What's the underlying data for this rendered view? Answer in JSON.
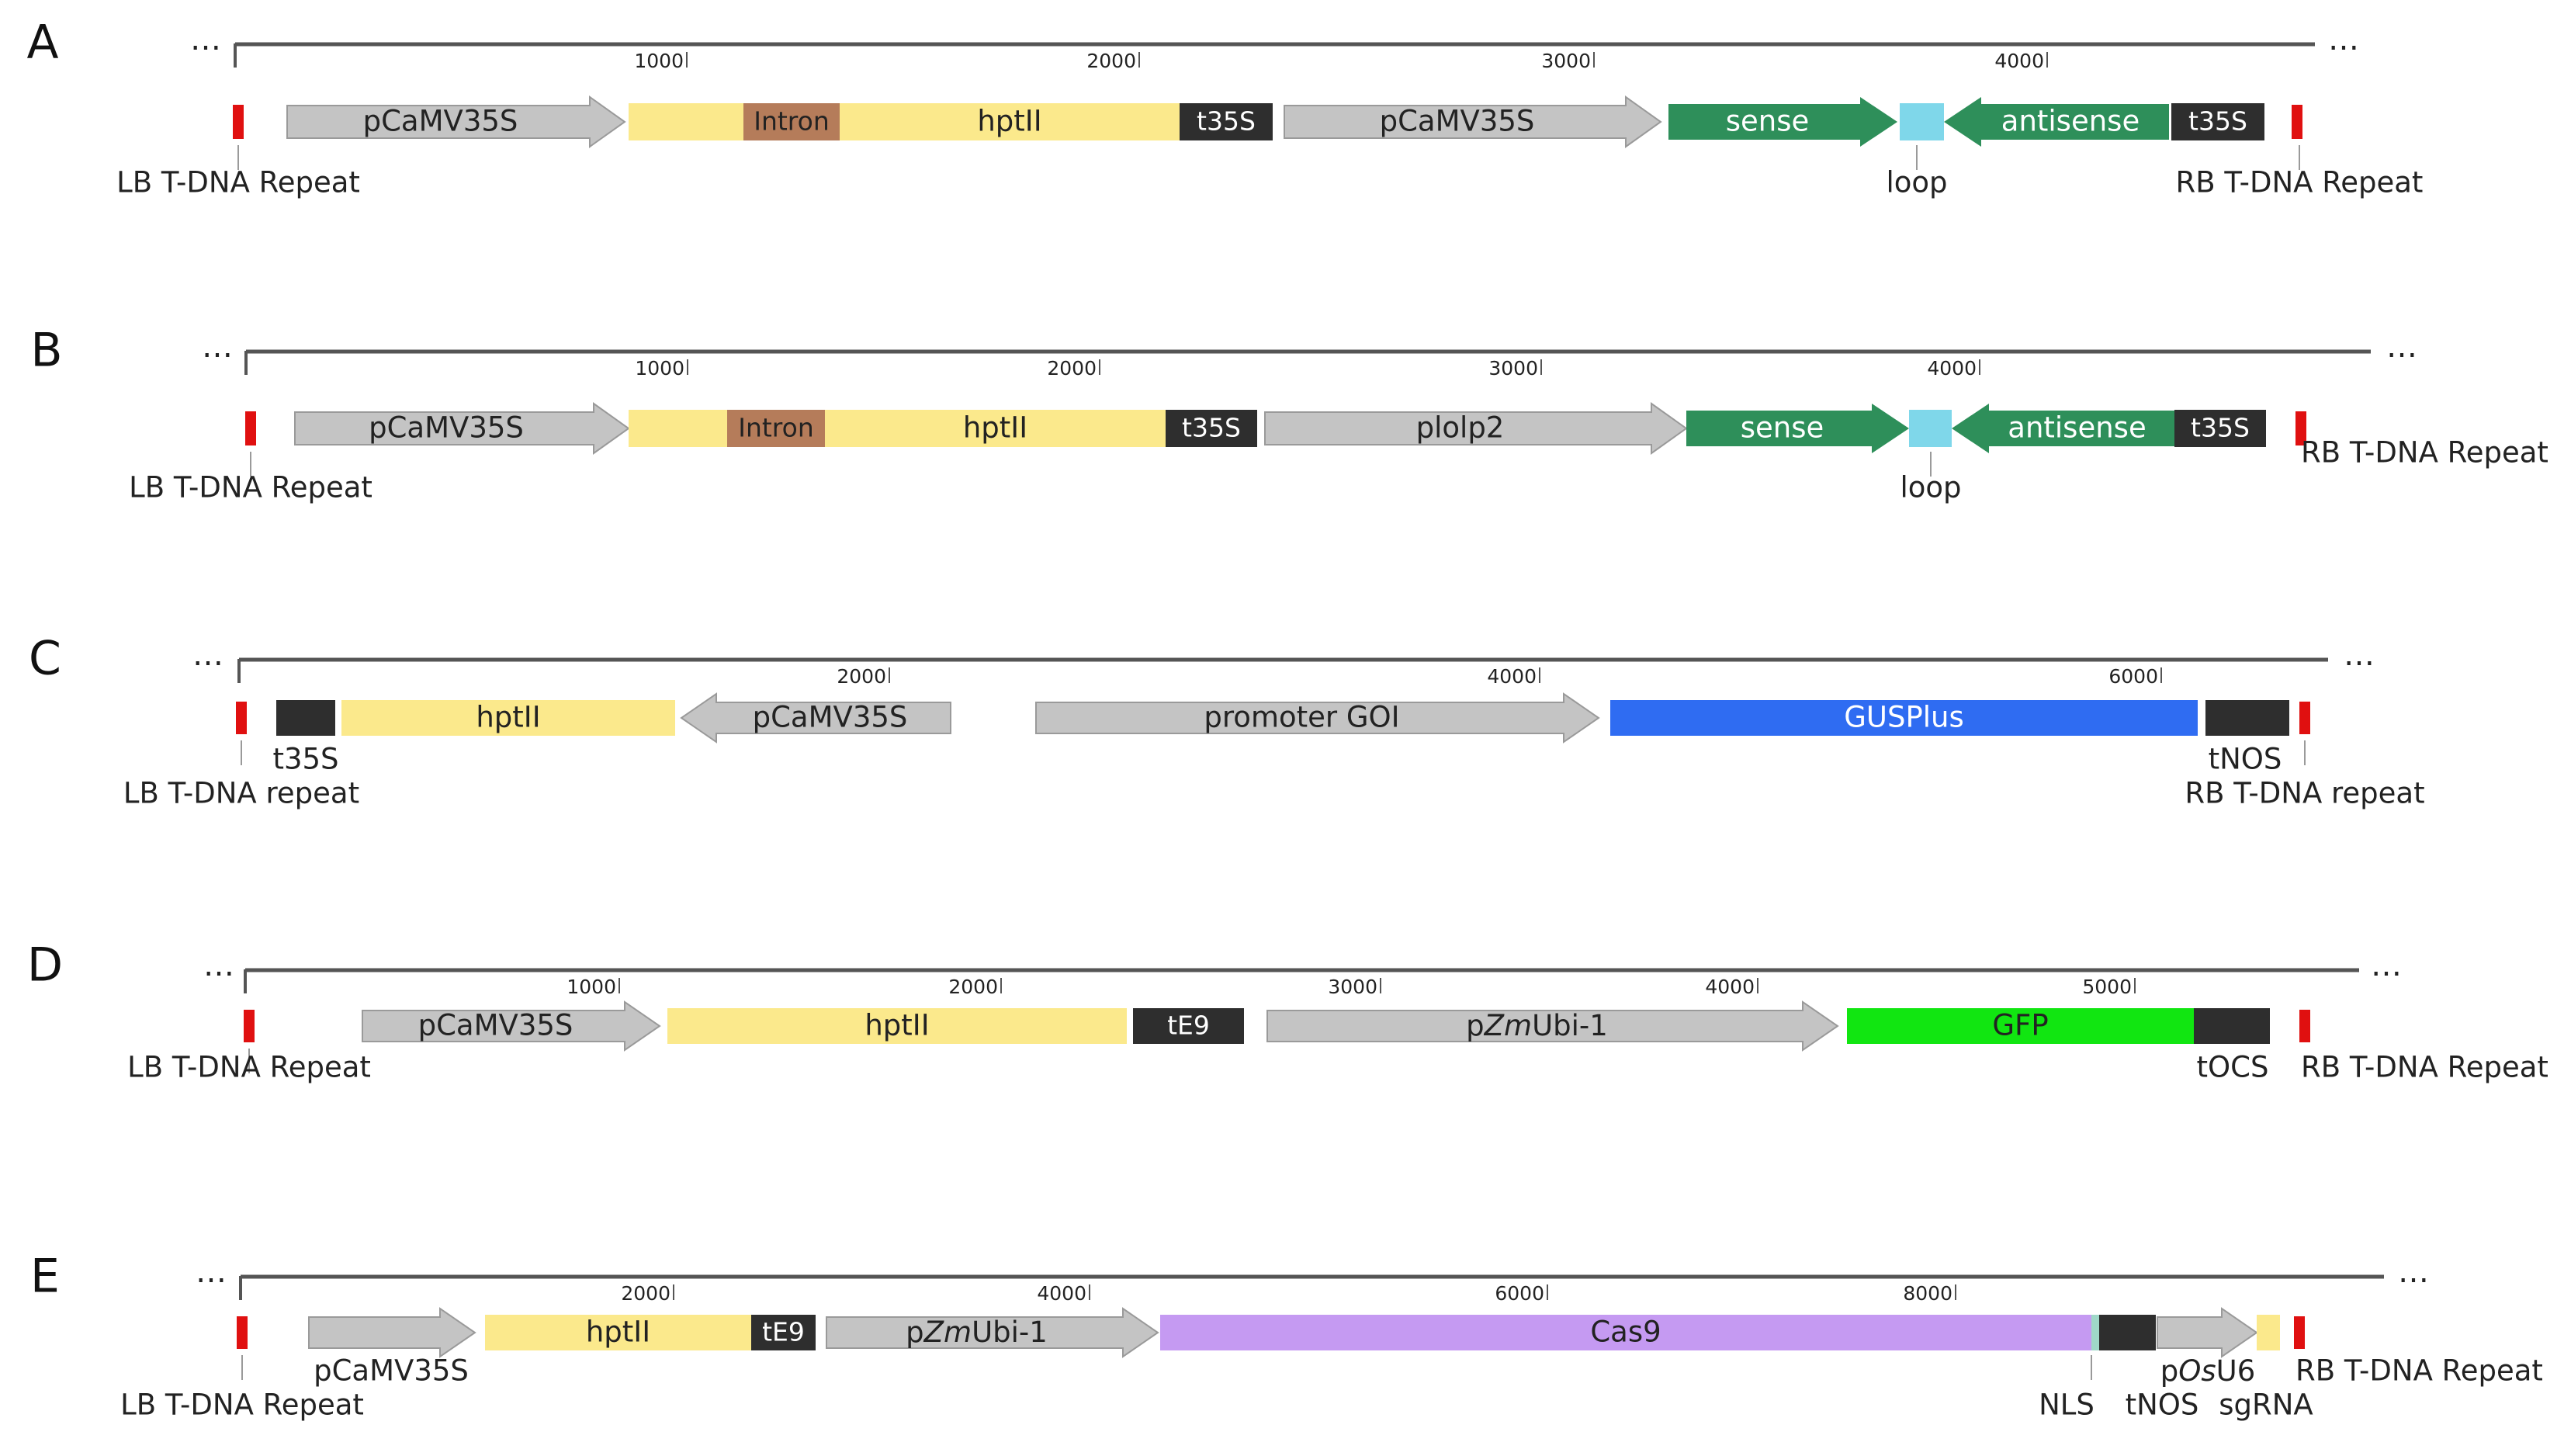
{
  "colors": {
    "promoter": "#c4c4c4",
    "promoter_stroke": "#9a9a9a",
    "hpt": "#fbe98c",
    "intron": "#b57c5a",
    "terminator": "#2e2e2e",
    "hairpin": "#2e8f5a",
    "loop": "#7fd7ea",
    "border": "#e01010",
    "gus": "#2f6cf2",
    "gfp": "#11e611",
    "cas9": "#c59af2",
    "nls": "#9fd8c8",
    "sgrna": "#fbe98c",
    "ruler": "#555555"
  },
  "icons": {
    "left_border": "red-bar-icon",
    "right_border": "red-bar-icon",
    "ellipsis": "ellipsis-icon"
  },
  "panels": [
    {
      "label": "A",
      "ticks": [
        "1000",
        "2000",
        "3000",
        "4000"
      ],
      "features": [
        {
          "name": "pCaMV35S",
          "kind": "promoter",
          "shape": "arrow-right",
          "text": "pCaMV35S"
        },
        {
          "name": "hptII",
          "kind": "hpt",
          "shape": "box",
          "text": "hptII"
        },
        {
          "name": "Intron",
          "kind": "intron",
          "shape": "box",
          "text": "Intron"
        },
        {
          "name": "t35S",
          "kind": "terminator",
          "shape": "box",
          "text": "t35S"
        },
        {
          "name": "pCaMV35S",
          "kind": "promoter",
          "shape": "arrow-right",
          "text": "pCaMV35S"
        },
        {
          "name": "sense",
          "kind": "hairpin",
          "shape": "arrow-right",
          "text": "sense"
        },
        {
          "name": "loop",
          "kind": "loop",
          "shape": "box",
          "text": ""
        },
        {
          "name": "antisense",
          "kind": "hairpin",
          "shape": "arrow-left",
          "text": "antisense"
        },
        {
          "name": "t35S",
          "kind": "terminator",
          "shape": "box",
          "text": "t35S"
        }
      ],
      "labels": [
        "LB T-DNA Repeat",
        "loop",
        "RB T-DNA Repeat"
      ]
    },
    {
      "label": "B",
      "ticks": [
        "1000",
        "2000",
        "3000",
        "4000"
      ],
      "features": [
        {
          "name": "pCaMV35S",
          "kind": "promoter",
          "shape": "arrow-right",
          "text": "pCaMV35S"
        },
        {
          "name": "hptII",
          "kind": "hpt",
          "shape": "box",
          "text": "hptII"
        },
        {
          "name": "Intron",
          "kind": "intron",
          "shape": "box",
          "text": "Intron"
        },
        {
          "name": "t35S",
          "kind": "terminator",
          "shape": "box",
          "text": "t35S"
        },
        {
          "name": "plolp2",
          "kind": "promoter",
          "shape": "arrow-right",
          "text": "plolp2"
        },
        {
          "name": "sense",
          "kind": "hairpin",
          "shape": "arrow-right",
          "text": "sense"
        },
        {
          "name": "loop",
          "kind": "loop",
          "shape": "box",
          "text": ""
        },
        {
          "name": "antisense",
          "kind": "hairpin",
          "shape": "arrow-left",
          "text": "antisense"
        },
        {
          "name": "t35S",
          "kind": "terminator",
          "shape": "box",
          "text": "t35S"
        }
      ],
      "labels": [
        "LB T-DNA Repeat",
        "loop",
        "RB T-DNA Repeat"
      ]
    },
    {
      "label": "C",
      "ticks": [
        "2000",
        "4000",
        "6000"
      ],
      "features": [
        {
          "name": "t35S",
          "kind": "terminator",
          "shape": "box",
          "text": ""
        },
        {
          "name": "hptII",
          "kind": "hpt",
          "shape": "box",
          "text": "hptII"
        },
        {
          "name": "pCaMV35S",
          "kind": "promoter",
          "shape": "arrow-left",
          "text": "pCaMV35S"
        },
        {
          "name": "promoter GOI",
          "kind": "promoter",
          "shape": "arrow-right",
          "text": "promoter GOI"
        },
        {
          "name": "GUSPlus",
          "kind": "gus",
          "shape": "box",
          "text": "GUSPlus"
        },
        {
          "name": "tNOS",
          "kind": "terminator",
          "shape": "box",
          "text": ""
        }
      ],
      "labels": [
        "t35S",
        "LB T-DNA repeat",
        "tNOS",
        "RB T-DNA repeat"
      ]
    },
    {
      "label": "D",
      "ticks": [
        "1000",
        "2000",
        "3000",
        "4000",
        "5000"
      ],
      "features": [
        {
          "name": "pCaMV35S",
          "kind": "promoter",
          "shape": "arrow-right",
          "text": "pCaMV35S"
        },
        {
          "name": "hptII",
          "kind": "hpt",
          "shape": "box",
          "text": "hptII"
        },
        {
          "name": "tE9",
          "kind": "terminator",
          "shape": "box",
          "text": "tE9"
        },
        {
          "name": "pZmUbi-1",
          "kind": "promoter",
          "shape": "arrow-right",
          "text": "pZmUbi-1"
        },
        {
          "name": "GFP",
          "kind": "gfp",
          "shape": "box",
          "text": "GFP"
        },
        {
          "name": "tOCS",
          "kind": "terminator",
          "shape": "box",
          "text": ""
        }
      ],
      "labels": [
        "LB T-DNA Repeat",
        "tOCS",
        "RB T-DNA Repeat"
      ]
    },
    {
      "label": "E",
      "ticks": [
        "2000",
        "4000",
        "6000",
        "8000"
      ],
      "features": [
        {
          "name": "pCaMV35S",
          "kind": "promoter",
          "shape": "arrow-right",
          "text": ""
        },
        {
          "name": "hptII",
          "kind": "hpt",
          "shape": "box",
          "text": "hptII"
        },
        {
          "name": "tE9",
          "kind": "terminator",
          "shape": "box",
          "text": "tE9"
        },
        {
          "name": "pZmUbi-1",
          "kind": "promoter",
          "shape": "arrow-right",
          "text": "pZmUbi-1"
        },
        {
          "name": "Cas9",
          "kind": "cas9",
          "shape": "box",
          "text": "Cas9"
        },
        {
          "name": "NLS",
          "kind": "nls",
          "shape": "box",
          "text": ""
        },
        {
          "name": "tNOS",
          "kind": "terminator",
          "shape": "box",
          "text": ""
        },
        {
          "name": "pOsU6",
          "kind": "promoter",
          "shape": "arrow-right",
          "text": ""
        },
        {
          "name": "sgRNA",
          "kind": "sgrna",
          "shape": "box",
          "text": ""
        }
      ],
      "labels": [
        "pCaMV35S",
        "LB T-DNA Repeat",
        "NLS",
        "tNOS",
        "pOsU6",
        "sgRNA",
        "RB T-DNA Repeat"
      ]
    }
  ]
}
